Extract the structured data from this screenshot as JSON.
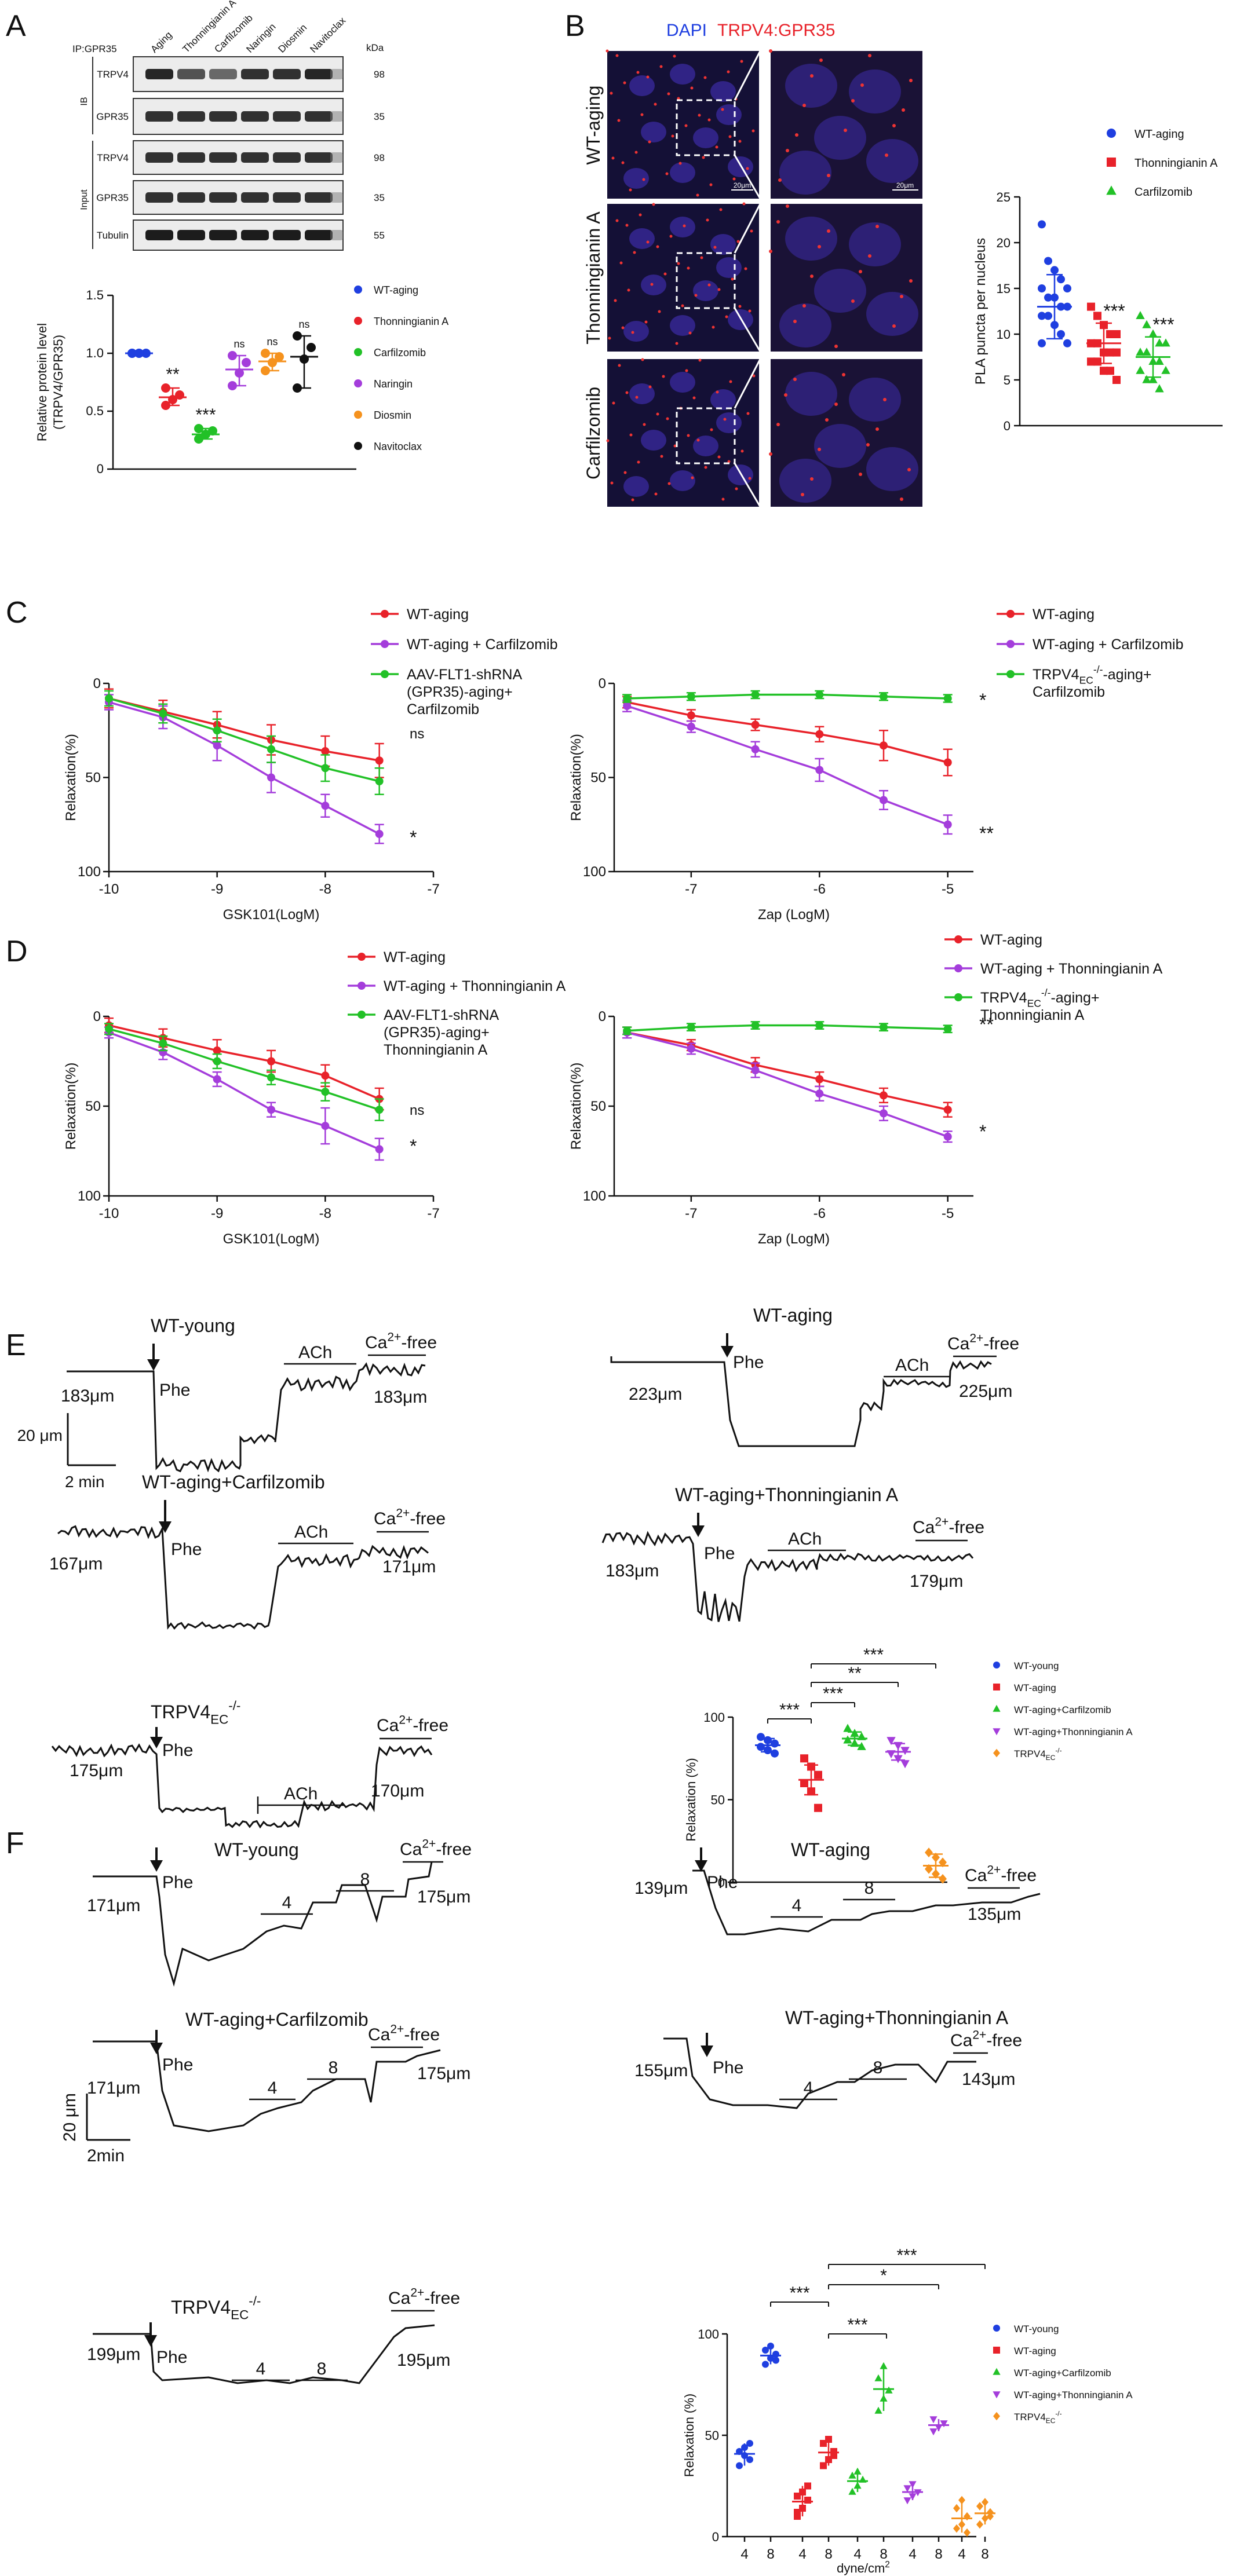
{
  "panel_letters": [
    "A",
    "B",
    "C",
    "D",
    "E",
    "F"
  ],
  "colors": {
    "blue": "#1f3fe0",
    "red": "#e8222a",
    "green": "#22c127",
    "purple": "#a43ddb",
    "orange": "#f5921e",
    "black": "#111111",
    "line_red": "#e8222a",
    "line_purple": "#a43ddb",
    "line_green": "#22c127"
  },
  "panelA": {
    "ip_label": "IP:GPR35",
    "lanes": [
      "Aging",
      "Thonningianin A",
      "Carfilzomib",
      "Naringin",
      "Diosmin",
      "Navitoclax"
    ],
    "kda_label": "kDa",
    "ib_label": "IB",
    "input_label": "Input",
    "blots": [
      {
        "name": "TRPV4",
        "kda": "98"
      },
      {
        "name": "GPR35",
        "kda": "35"
      },
      {
        "name": "TRPV4",
        "kda": "98"
      },
      {
        "name": "GPR35",
        "kda": "35"
      },
      {
        "name": "Tubulin",
        "kda": "55"
      }
    ],
    "chart_data": {
      "type": "scatter",
      "ylabel": "Relative  protein level\n(TRPV4/GPR35)",
      "ylim": [
        0,
        1.5
      ],
      "yticks": [
        "0",
        "0.5",
        "1.0",
        "1.5"
      ],
      "groups": [
        {
          "name": "WT-aging",
          "color": "blue",
          "mean": 1.0,
          "points": [
            1.0,
            1.0,
            1.0,
            1.0,
            1.0
          ],
          "sig": ""
        },
        {
          "name": "Thonningianin A",
          "color": "red",
          "mean": 0.62,
          "points": [
            0.55,
            0.6,
            0.64,
            0.7
          ],
          "sig": "**"
        },
        {
          "name": "Carfilzomib",
          "color": "green",
          "mean": 0.3,
          "points": [
            0.26,
            0.3,
            0.33,
            0.35
          ],
          "sig": "***"
        },
        {
          "name": "Naringin",
          "color": "purple",
          "mean": 0.86,
          "points": [
            0.72,
            0.83,
            0.92,
            0.98
          ],
          "sig": "ns"
        },
        {
          "name": "Diosmin",
          "color": "orange",
          "mean": 0.93,
          "points": [
            0.85,
            0.92,
            0.97,
            1.0
          ],
          "sig": "ns"
        },
        {
          "name": "Navitoclax",
          "color": "black",
          "mean": 0.97,
          "points": [
            0.7,
            0.95,
            1.05,
            1.15
          ],
          "sig": "ns"
        }
      ]
    }
  },
  "panelB": {
    "title_dapi": "DAPI",
    "title_pla": "TRPV4:GPR35",
    "rows": [
      "WT-aging",
      "Thonningianin A",
      "Carfilzomib"
    ],
    "scale1": "20μm",
    "scale2": "20μm",
    "chart_data": {
      "type": "scatter",
      "ylabel": "PLA puncta per nucleus",
      "ylim": [
        0,
        25
      ],
      "yticks": [
        "0",
        "5",
        "10",
        "15",
        "20",
        "25"
      ],
      "groups": [
        {
          "name": "WT-aging",
          "color": "blue",
          "marker": "circle",
          "mean": 13,
          "sd": 3.5,
          "points": [
            22,
            18,
            17,
            16,
            15,
            15,
            14,
            14,
            13,
            13,
            12,
            12,
            11,
            10,
            9,
            9
          ],
          "sig": ""
        },
        {
          "name": "Thonningianin A",
          "color": "red",
          "marker": "square",
          "mean": 9,
          "sd": 2.2,
          "points": [
            13,
            12,
            11,
            10,
            10,
            9,
            9,
            8,
            8,
            8,
            7,
            7,
            6,
            6,
            5
          ],
          "sig": "***"
        },
        {
          "name": "Carfilzomib",
          "color": "green",
          "marker": "triangle",
          "mean": 7.5,
          "sd": 2.2,
          "points": [
            12,
            11,
            10,
            9,
            9,
            8,
            8,
            7,
            7,
            6,
            6,
            5,
            5,
            4
          ],
          "sig": "***"
        }
      ]
    }
  },
  "panelC": {
    "left": {
      "chart_data": {
        "type": "line",
        "xlabel": "GSK101(LogM)",
        "ylabel": "Relaxation(%)",
        "xlim": [
          -10,
          -7
        ],
        "ylim": [
          0,
          100
        ],
        "reversed_y": true,
        "xticks": [
          "-10",
          "-9",
          "-8",
          "-7"
        ],
        "yticks": [
          "0",
          "50",
          "100"
        ],
        "x": [
          -10,
          -9.5,
          -9,
          -8.5,
          -8,
          -7.5
        ],
        "series": [
          {
            "name": "WT-aging",
            "color": "line_red",
            "values": [
              8,
              15,
              22,
              30,
              36,
              41
            ],
            "err": [
              5,
              6,
              7,
              8,
              8,
              9
            ]
          },
          {
            "name": "WT-aging + Carfilzomib",
            "color": "line_purple",
            "values": [
              10,
              18,
              33,
              50,
              65,
              80
            ],
            "err": [
              4,
              6,
              8,
              8,
              6,
              5
            ]
          },
          {
            "name": "AAV-FLT1-shRNA\n(GPR35)-aging+\nCarfilzomib",
            "color": "line_green",
            "values": [
              8,
              16,
              25,
              35,
              45,
              52
            ],
            "err": [
              4,
              5,
              6,
              7,
              7,
              7
            ]
          }
        ],
        "end_labels": [
          "ns",
          "*"
        ]
      }
    },
    "right": {
      "chart_data": {
        "type": "line",
        "xlabel": "Zap (LogM)",
        "ylabel": "Relaxation(%)",
        "xlim": [
          -7.6,
          -4.8
        ],
        "ylim": [
          0,
          100
        ],
        "reversed_y": true,
        "xticks": [
          "-7",
          "-6",
          "-5"
        ],
        "yticks": [
          "0",
          "50",
          "100"
        ],
        "x": [
          -7.5,
          -7,
          -6.5,
          -6,
          -5.5,
          -5
        ],
        "series": [
          {
            "name": "WT-aging",
            "color": "line_red",
            "values": [
              10,
              17,
              22,
              27,
              33,
              42
            ],
            "err": [
              3,
              3,
              3,
              4,
              8,
              7
            ]
          },
          {
            "name": "WT-aging + Carfilzomib",
            "color": "line_purple",
            "values": [
              12,
              23,
              35,
              46,
              62,
              75
            ],
            "err": [
              3,
              3,
              4,
              6,
              5,
              5
            ]
          },
          {
            "name": "TRPV4EC-/--aging+\nCarfilzomib",
            "color": "line_green",
            "values": [
              8,
              7,
              6,
              6,
              7,
              8
            ],
            "err": [
              2,
              2,
              2,
              2,
              2,
              2
            ]
          }
        ],
        "end_labels": [
          "*",
          "**"
        ]
      }
    }
  },
  "panelD": {
    "left": {
      "chart_data": {
        "type": "line",
        "xlabel": "GSK101(LogM)",
        "ylabel": "Relaxation(%)",
        "xlim": [
          -10,
          -7
        ],
        "ylim": [
          0,
          100
        ],
        "reversed_y": true,
        "xticks": [
          "-10",
          "-9",
          "-8",
          "-7"
        ],
        "yticks": [
          "0",
          "50",
          "100"
        ],
        "x": [
          -10,
          -9.5,
          -9,
          -8.5,
          -8,
          -7.5
        ],
        "series": [
          {
            "name": "WT-aging",
            "color": "line_red",
            "values": [
              5,
              12,
              19,
              25,
              33,
              46
            ],
            "err": [
              4,
              5,
              6,
              6,
              6,
              6
            ]
          },
          {
            "name": "WT-aging + Thonningianin A",
            "color": "line_purple",
            "values": [
              9,
              20,
              35,
              52,
              61,
              74
            ],
            "err": [
              3,
              4,
              4,
              4,
              10,
              6
            ]
          },
          {
            "name": "AAV-FLT1-shRNA\n(GPR35)-aging+\nThonningianin A",
            "color": "line_green",
            "values": [
              7,
              15,
              25,
              34,
              42,
              52
            ],
            "err": [
              3,
              4,
              4,
              4,
              5,
              6
            ]
          }
        ],
        "end_labels": [
          "ns",
          "*"
        ]
      }
    },
    "right": {
      "chart_data": {
        "type": "line",
        "xlabel": "Zap (LogM)",
        "ylabel": "Relaxation(%)",
        "xlim": [
          -7.6,
          -4.8
        ],
        "ylim": [
          0,
          100
        ],
        "reversed_y": true,
        "xticks": [
          "-7",
          "-6",
          "-5"
        ],
        "yticks": [
          "0",
          "50",
          "100"
        ],
        "x": [
          -7.5,
          -7,
          -6.5,
          -6,
          -5.5,
          -5
        ],
        "series": [
          {
            "name": "WT-aging",
            "color": "line_red",
            "values": [
              9,
              16,
              27,
              35,
              44,
              52
            ],
            "err": [
              3,
              3,
              4,
              4,
              4,
              4
            ]
          },
          {
            "name": "WT-aging + Thonningianin A",
            "color": "line_purple",
            "values": [
              9,
              18,
              30,
              43,
              54,
              67
            ],
            "err": [
              3,
              3,
              4,
              4,
              4,
              3
            ]
          },
          {
            "name": "TRPV4EC-/--aging+\nThonningianin A",
            "color": "line_green",
            "values": [
              8,
              6,
              5,
              5,
              6,
              7
            ],
            "err": [
              2,
              2,
              2,
              2,
              2,
              2
            ]
          }
        ],
        "end_labels": [
          "*",
          "**"
        ]
      }
    }
  },
  "panelE": {
    "scale_v": "20 μm",
    "scale_h": "2 min",
    "traces": [
      {
        "title": "WT-young",
        "phe": "Phe",
        "ach": "ACh",
        "ca": "Ca2+-free",
        "start": "183μm",
        "end": "183μm"
      },
      {
        "title": "WT-aging",
        "phe": "Phe",
        "ach": "ACh",
        "ca": "Ca2+-free",
        "start": "223μm",
        "end": "225μm"
      },
      {
        "title": "WT-aging+Carfilzomib",
        "phe": "Phe",
        "ach": "ACh",
        "ca": "Ca2+-free",
        "start": "167μm",
        "end": "171μm"
      },
      {
        "title": "WT-aging+Thonningianin A",
        "phe": "Phe",
        "ach": "ACh",
        "ca": "Ca2+-free",
        "start": "183μm",
        "end": "179μm"
      },
      {
        "title": "TRPV4EC-/-",
        "phe": "Phe",
        "ach": "ACh",
        "ca": "Ca2+-free",
        "start": "175μm",
        "end": "170μm"
      }
    ],
    "chart_data": {
      "type": "scatter",
      "ylabel": "Relaxation (%)",
      "ylim": [
        0,
        100
      ],
      "yticks": [
        "0",
        "50",
        "100"
      ],
      "groups": [
        {
          "name": "WT-young",
          "color": "blue",
          "marker": "circle",
          "mean": 83,
          "sd": 4,
          "points": [
            88,
            86,
            84,
            82,
            80,
            78
          ]
        },
        {
          "name": "WT-aging",
          "color": "red",
          "marker": "square",
          "mean": 62,
          "sd": 9,
          "points": [
            75,
            70,
            65,
            60,
            55,
            45
          ]
        },
        {
          "name": "WT-aging+Carfilzomib",
          "color": "green",
          "marker": "triangle",
          "mean": 87,
          "sd": 4,
          "points": [
            93,
            90,
            88,
            86,
            84,
            82
          ]
        },
        {
          "name": "WT-aging+Thonningianin A",
          "color": "purple",
          "marker": "tri-down",
          "mean": 79,
          "sd": 5,
          "points": [
            86,
            83,
            80,
            78,
            75,
            72
          ]
        },
        {
          "name": "TRPV4EC-/-",
          "color": "orange",
          "marker": "diamond",
          "mean": 10,
          "sd": 7,
          "points": [
            18,
            15,
            12,
            8,
            5,
            2
          ]
        }
      ],
      "brackets": [
        "***",
        "***",
        "**",
        "***"
      ]
    }
  },
  "panelF": {
    "scale_v": "20 μm",
    "scale_h": "2min",
    "traces": [
      {
        "title": "WT-young",
        "phe": "Phe",
        "f4": "4",
        "f8": "8",
        "ca": "Ca2+-free",
        "start": "171μm",
        "end": "175μm"
      },
      {
        "title": "WT-aging",
        "phe": "Phe",
        "f4": "4",
        "f8": "8",
        "ca": "Ca2+-free",
        "start": "139μm",
        "end": "135μm"
      },
      {
        "title": "WT-aging+Carfilzomib",
        "phe": "Phe",
        "f4": "4",
        "f8": "8",
        "ca": "Ca2+-free",
        "start": "171μm",
        "end": "175μm"
      },
      {
        "title": "WT-aging+Thonningianin A",
        "phe": "Phe",
        "f4": "4",
        "f8": "8",
        "ca": "Ca2+-free",
        "start": "155μm",
        "end": "143μm"
      },
      {
        "title": "TRPV4EC-/-",
        "phe": "Phe",
        "f4": "4",
        "f8": "8",
        "ca": "Ca2+-free",
        "start": "199μm",
        "end": "195μm"
      }
    ],
    "chart_data": {
      "type": "scatter",
      "ylabel": "Relaxation (%)",
      "xlabel": "dyne/cm2",
      "ylim": [
        0,
        100
      ],
      "yticks": [
        "0",
        "50",
        "100"
      ],
      "xticks": [
        "4",
        "8",
        "4",
        "8",
        "4",
        "8",
        "4",
        "8",
        "4",
        "8"
      ],
      "groups": [
        {
          "name": "WT-young",
          "color": "blue",
          "marker": "circle",
          "vals4": [
            42,
            40,
            38,
            35,
            44,
            46
          ],
          "vals8": [
            85,
            88,
            90,
            92,
            94,
            87
          ]
        },
        {
          "name": "WT-aging",
          "color": "red",
          "marker": "square",
          "vals4": [
            10,
            14,
            18,
            20,
            22,
            25,
            12
          ],
          "vals8": [
            35,
            38,
            42,
            46,
            48,
            40
          ]
        },
        {
          "name": "WT-aging+Carfilzomib",
          "color": "green",
          "marker": "triangle",
          "vals4": [
            22,
            25,
            28,
            30,
            32
          ],
          "vals8": [
            62,
            68,
            72,
            78,
            84
          ]
        },
        {
          "name": "WT-aging+Thonningianin A",
          "color": "purple",
          "marker": "tri-down",
          "vals4": [
            18,
            20,
            22,
            24,
            26
          ],
          "vals8": [
            52,
            54,
            56,
            58
          ]
        },
        {
          "name": "TRPV4EC-/-",
          "color": "orange",
          "marker": "diamond",
          "vals4": [
            4,
            6,
            10,
            14,
            18,
            2
          ],
          "vals8": [
            6,
            9,
            12,
            15,
            17,
            10
          ]
        }
      ],
      "brackets": [
        "***",
        "***",
        "***",
        "*",
        "***"
      ]
    }
  }
}
